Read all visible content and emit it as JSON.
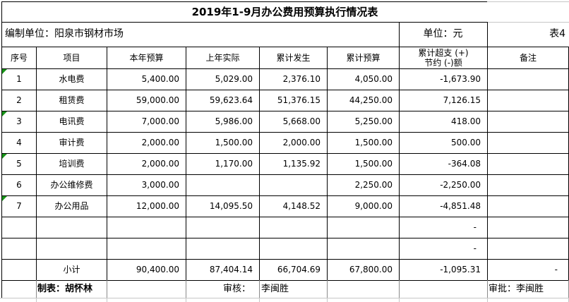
{
  "title": "2019年1-9月办公费用预算执行情况表",
  "meta": {
    "org_label": "编制单位：阳泉市钢材市场",
    "unit_label": "单位：元",
    "sheet_label": "表4"
  },
  "columns": [
    {
      "label": "序号"
    },
    {
      "label": "项目"
    },
    {
      "label": "本年预算"
    },
    {
      "label": "上年实际"
    },
    {
      "label": "累计发生"
    },
    {
      "label": "累计预算"
    },
    {
      "label": "累计超支 (+)",
      "label2": "节约 (-)额"
    },
    {
      "label": "备注"
    }
  ],
  "rows": [
    {
      "cells": [
        "1",
        "水电费",
        "5,400.00",
        "5,029.00",
        "2,376.10",
        "4,050.00",
        "-1,673.90",
        ""
      ],
      "error_marker": true
    },
    {
      "cells": [
        "2",
        "租赁费",
        "59,000.00",
        "59,623.64",
        "51,376.15",
        "44,250.00",
        "7,126.15",
        ""
      ],
      "error_marker": false
    },
    {
      "cells": [
        "3",
        "电讯费",
        "7,000.00",
        "5,986.00",
        "5,668.00",
        "5,250.00",
        "418.00",
        ""
      ],
      "error_marker": true
    },
    {
      "cells": [
        "4",
        "审计费",
        "2,000.00",
        "1,500.00",
        "2,000.00",
        "1,500.00",
        "500.00",
        ""
      ],
      "error_marker": false
    },
    {
      "cells": [
        "5",
        "培训费",
        "2,000.00",
        "1,170.00",
        "1,135.92",
        "1,500.00",
        "-364.08",
        ""
      ],
      "error_marker": true
    },
    {
      "cells": [
        "6",
        "办公维修费",
        "3,000.00",
        "",
        "",
        "2,250.00",
        "-2,250.00",
        ""
      ],
      "error_marker": false
    },
    {
      "cells": [
        "7",
        "办公用品",
        "12,000.00",
        "14,095.50",
        "4,148.52",
        "9,000.00",
        "-4,851.48",
        ""
      ],
      "error_marker": true
    },
    {
      "cells": [
        "",
        "",
        "",
        "",
        "",
        "",
        "-",
        ""
      ],
      "error_marker": false
    },
    {
      "cells": [
        "",
        "",
        "",
        "",
        "",
        "",
        "-",
        ""
      ],
      "error_marker": false
    },
    {
      "cells": [
        "",
        "小计",
        "90,400.00",
        "87,404.14",
        "66,704.69",
        "67,800.00",
        "-1,095.31",
        "-"
      ],
      "error_marker": false,
      "subtotal": true
    }
  ],
  "footer": {
    "prepared_by": "制表：胡怀林",
    "reviewed_by_label": "审核：",
    "reviewed_by_name": "李闽胜",
    "approved_by": "审批：李闽胜"
  },
  "colors": {
    "border": "#000000",
    "gridline": "#c6c6c6",
    "footer_divider": "#8a8a8a",
    "error_marker": "#189418",
    "background": "#ffffff",
    "text": "#000000"
  }
}
